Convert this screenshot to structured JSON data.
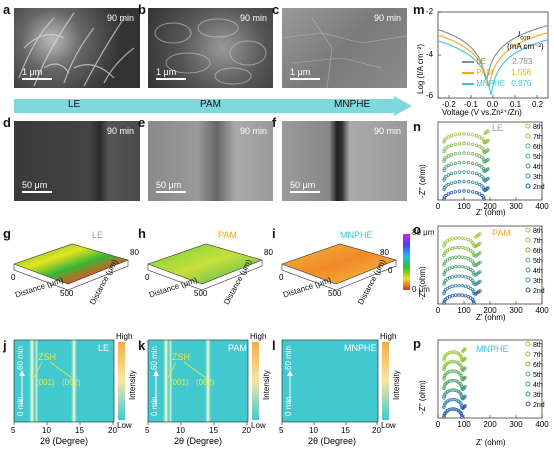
{
  "panels": {
    "a": {
      "letter": "a",
      "time": "90 min",
      "scale": "1 μm"
    },
    "b": {
      "letter": "b",
      "time": "90 min",
      "scale": "1 μm"
    },
    "c": {
      "letter": "c",
      "time": "90 min",
      "scale": "1 μm"
    },
    "d": {
      "letter": "d",
      "time": "90 min",
      "scale": "50 μm"
    },
    "e": {
      "letter": "e",
      "time": "90 min",
      "scale": "50 μm"
    },
    "f": {
      "letter": "f",
      "time": "90 min",
      "scale": "50 μm"
    },
    "g": {
      "letter": "g",
      "label": "LE"
    },
    "h": {
      "letter": "h",
      "label": "PAM"
    },
    "i": {
      "letter": "i",
      "label": "MNPHE"
    },
    "j": {
      "letter": "j",
      "label": "LE"
    },
    "k": {
      "letter": "k",
      "label": "PAM"
    },
    "l": {
      "letter": "l",
      "label": "MNPHE"
    },
    "m": {
      "letter": "m"
    },
    "n": {
      "letter": "n",
      "label": "LE"
    },
    "o": {
      "letter": "o",
      "label": "PAM"
    },
    "p": {
      "letter": "p",
      "label": "MNPHE"
    }
  },
  "arrow_labels": [
    "LE",
    "PAM",
    "MNPHE"
  ],
  "colors": {
    "LE": "#8a8a8a",
    "PAM": "#f4a81d",
    "MNPHE": "#3fc4d6",
    "arrow": "#7fd8dd"
  },
  "profilometry": {
    "zlabel_top": "80 μm",
    "zlabel_bottom": "0 μm",
    "colorbar_tick_80": "80",
    "colorbar_tick_0": "0",
    "axis_distance": "Distance (μm)",
    "tick_0": "0",
    "tick_500": "500"
  },
  "xrd": {
    "xlabel": "2θ (Degree)",
    "xticks": [
      "5",
      "10",
      "15",
      "20"
    ],
    "time_top": "60 min",
    "time_bottom": "0 min",
    "zsh": "ZSH",
    "peak1": "(001)",
    "peak2": "(002)",
    "cb_high": "High",
    "cb_low": "Low",
    "cb_title": "Intensity"
  },
  "chart_data": {
    "type": "line",
    "title": "",
    "xlabel": "Voltage (V vs.Zn²⁺/Zn)",
    "ylabel": "Log (I/A cm⁻²)",
    "xlim": [
      -0.25,
      0.25
    ],
    "ylim": [
      -6,
      -2
    ],
    "xticks": [
      "-0.2",
      "-0.1",
      "0.0",
      "0.1",
      "0.2"
    ],
    "yticks": [
      "-2",
      "-4",
      "-6"
    ],
    "legend_header": "I",
    "legend_header_sub": "corr",
    "legend_header_unit": "(mA cm⁻²)",
    "series": [
      {
        "name": "LE",
        "icorr": "2.783"
      },
      {
        "name": "PAM",
        "icorr": "1.556"
      },
      {
        "name": "MNPHE",
        "icorr": "0.870"
      }
    ]
  },
  "eis": {
    "xlabel": "Z' (ohm)",
    "ylabel": "-Z'' (ohm)",
    "xticks": [
      "0",
      "100",
      "200",
      "300",
      "400"
    ],
    "legend": [
      "8th",
      "7th",
      "6th",
      "5th",
      "4th",
      "3th",
      "2nd"
    ]
  }
}
